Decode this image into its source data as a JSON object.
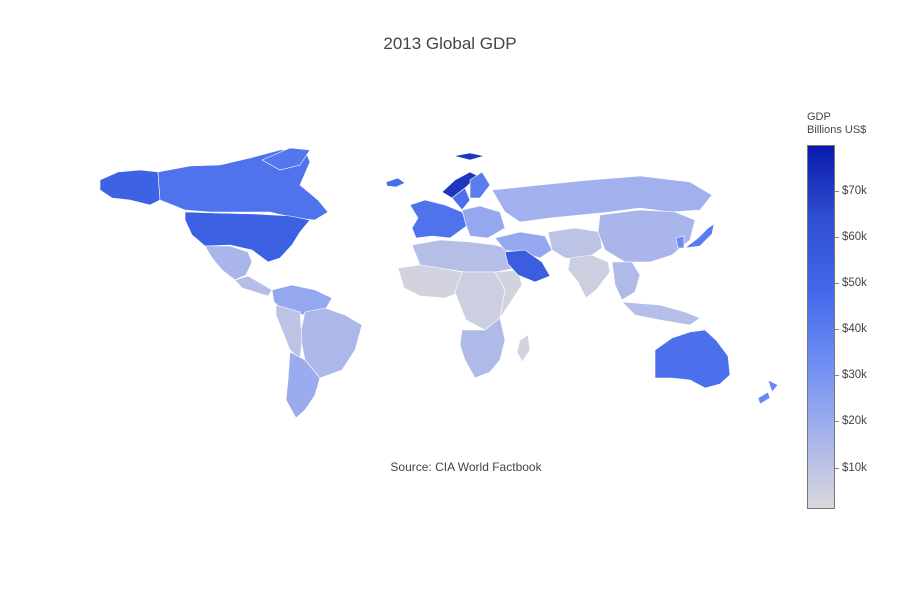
{
  "title": "2013 Global GDP",
  "source": "Source: CIA World Factbook",
  "colorbar": {
    "title_line1": "GDP",
    "title_line2": "Billions US$",
    "min": 1,
    "max": 80,
    "ticks": [
      {
        "value": 70,
        "label": "$70k"
      },
      {
        "value": 60,
        "label": "$60k"
      },
      {
        "value": 50,
        "label": "$50k"
      },
      {
        "value": 40,
        "label": "$40k"
      },
      {
        "value": 30,
        "label": "$30k"
      },
      {
        "value": 20,
        "label": "$20k"
      },
      {
        "value": 10,
        "label": "$10k"
      }
    ],
    "colorscale": [
      "#d8d8dc",
      "#a6b3ec",
      "#6f8ef4",
      "#4268ea",
      "#2f4fd0",
      "#0a1aad"
    ]
  },
  "regions": [
    {
      "name": "Alaska",
      "value": 52
    },
    {
      "name": "Canada",
      "value": 44
    },
    {
      "name": "Greenland",
      "value": 42
    },
    {
      "name": "United States",
      "value": 53
    },
    {
      "name": "Mexico",
      "value": 16
    },
    {
      "name": "Central America",
      "value": 12
    },
    {
      "name": "South America North",
      "value": 22
    },
    {
      "name": "Brazil",
      "value": 15
    },
    {
      "name": "Andes",
      "value": 10
    },
    {
      "name": "Argentina",
      "value": 20
    },
    {
      "name": "Iceland",
      "value": 46
    },
    {
      "name": "Norway",
      "value": 72
    },
    {
      "name": "Sweden",
      "value": 45
    },
    {
      "name": "Finland",
      "value": 40
    },
    {
      "name": "Western Europe",
      "value": 44
    },
    {
      "name": "Eastern Europe",
      "value": 22
    },
    {
      "name": "Russia",
      "value": 18
    },
    {
      "name": "North Africa",
      "value": 12
    },
    {
      "name": "West Africa",
      "value": 3
    },
    {
      "name": "Central Africa",
      "value": 5
    },
    {
      "name": "East Africa",
      "value": 3
    },
    {
      "name": "Southern Africa",
      "value": 14
    },
    {
      "name": "Madagascar",
      "value": 3
    },
    {
      "name": "Middle East",
      "value": 22
    },
    {
      "name": "Saudi Arabia",
      "value": 55
    },
    {
      "name": "Central Asia",
      "value": 10
    },
    {
      "name": "China",
      "value": 16
    },
    {
      "name": "India",
      "value": 5
    },
    {
      "name": "Southeast Asia",
      "value": 14
    },
    {
      "name": "Indonesia",
      "value": 12
    },
    {
      "name": "Japan",
      "value": 40
    },
    {
      "name": "Korea",
      "value": 34
    },
    {
      "name": "Australia",
      "value": 45
    },
    {
      "name": "New Zealand",
      "value": 35
    }
  ]
}
